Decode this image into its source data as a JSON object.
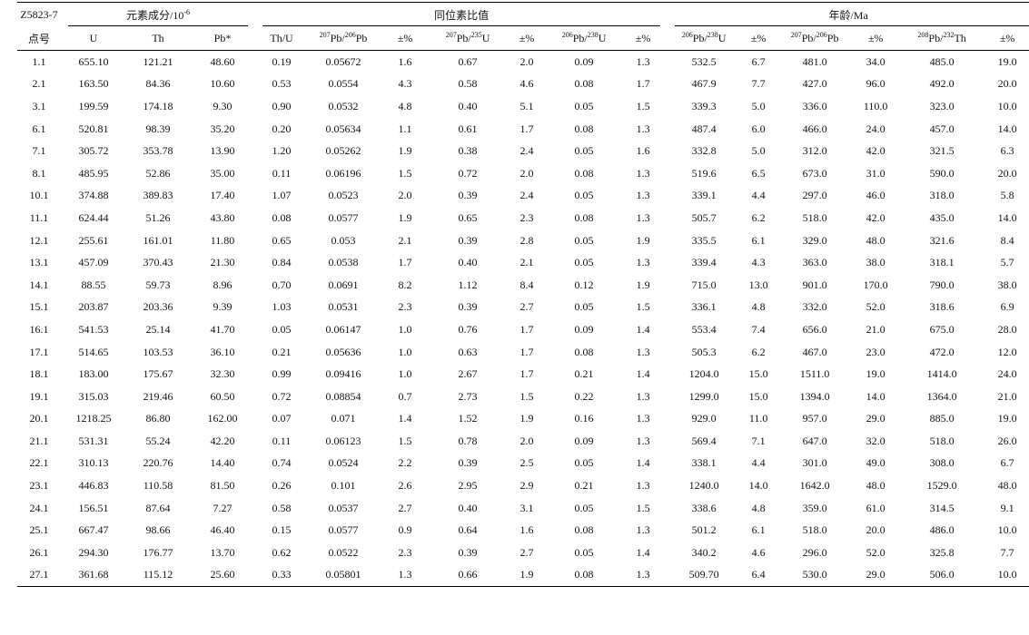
{
  "table": {
    "sample_label": "Z5823-7",
    "groups": {
      "element": "元素成分/10",
      "element_exp": "-6",
      "ratio": "同位素比值",
      "age": "年龄/Ma"
    },
    "columns": {
      "point": "点号",
      "u": "U",
      "th": "Th",
      "pb": "Pb*",
      "thu": "Th/U",
      "r1_sup_a": "207",
      "r1_mid": "Pb/",
      "r1_sup_b": "206",
      "r1_end": "Pb",
      "err1": "±%",
      "r2_sup_a": "207",
      "r2_mid": "Pb/",
      "r2_sup_b": "235",
      "r2_end": "U",
      "err2": "±%",
      "r3_sup_a": "206",
      "r3_mid": "Pb/",
      "r3_sup_b": "238",
      "r3_end": "U",
      "err3": "±%",
      "a1_sup_a": "206",
      "a1_mid": "Pb/",
      "a1_sup_b": "238",
      "a1_end": "U",
      "aerr1": "±%",
      "a2_sup_a": "207",
      "a2_mid": "Pb/",
      "a2_sup_b": "206",
      "a2_end": "Pb",
      "aerr2": "±%",
      "a3_sup_a": "208",
      "a3_mid": "Pb/",
      "a3_sup_b": "232",
      "a3_end": "Th",
      "aerr3": "±%"
    },
    "rows": [
      [
        "1.1",
        "655.10",
        "121.21",
        "48.60",
        "0.19",
        "0.05672",
        "1.6",
        "0.67",
        "2.0",
        "0.09",
        "1.3",
        "532.5",
        "6.7",
        "481.0",
        "34.0",
        "485.0",
        "19.0"
      ],
      [
        "2.1",
        "163.50",
        "84.36",
        "10.60",
        "0.53",
        "0.0554",
        "4.3",
        "0.58",
        "4.6",
        "0.08",
        "1.7",
        "467.9",
        "7.7",
        "427.0",
        "96.0",
        "492.0",
        "20.0"
      ],
      [
        "3.1",
        "199.59",
        "174.18",
        "9.30",
        "0.90",
        "0.0532",
        "4.8",
        "0.40",
        "5.1",
        "0.05",
        "1.5",
        "339.3",
        "5.0",
        "336.0",
        "110.0",
        "323.0",
        "10.0"
      ],
      [
        "6.1",
        "520.81",
        "98.39",
        "35.20",
        "0.20",
        "0.05634",
        "1.1",
        "0.61",
        "1.7",
        "0.08",
        "1.3",
        "487.4",
        "6.0",
        "466.0",
        "24.0",
        "457.0",
        "14.0"
      ],
      [
        "7.1",
        "305.72",
        "353.78",
        "13.90",
        "1.20",
        "0.05262",
        "1.9",
        "0.38",
        "2.4",
        "0.05",
        "1.6",
        "332.8",
        "5.0",
        "312.0",
        "42.0",
        "321.5",
        "6.3"
      ],
      [
        "8.1",
        "485.95",
        "52.86",
        "35.00",
        "0.11",
        "0.06196",
        "1.5",
        "0.72",
        "2.0",
        "0.08",
        "1.3",
        "519.6",
        "6.5",
        "673.0",
        "31.0",
        "590.0",
        "20.0"
      ],
      [
        "10.1",
        "374.88",
        "389.83",
        "17.40",
        "1.07",
        "0.0523",
        "2.0",
        "0.39",
        "2.4",
        "0.05",
        "1.3",
        "339.1",
        "4.4",
        "297.0",
        "46.0",
        "318.0",
        "5.8"
      ],
      [
        "11.1",
        "624.44",
        "51.26",
        "43.80",
        "0.08",
        "0.0577",
        "1.9",
        "0.65",
        "2.3",
        "0.08",
        "1.3",
        "505.7",
        "6.2",
        "518.0",
        "42.0",
        "435.0",
        "14.0"
      ],
      [
        "12.1",
        "255.61",
        "161.01",
        "11.80",
        "0.65",
        "0.053",
        "2.1",
        "0.39",
        "2.8",
        "0.05",
        "1.9",
        "335.5",
        "6.1",
        "329.0",
        "48.0",
        "321.6",
        "8.4"
      ],
      [
        "13.1",
        "457.09",
        "370.43",
        "21.30",
        "0.84",
        "0.0538",
        "1.7",
        "0.40",
        "2.1",
        "0.05",
        "1.3",
        "339.4",
        "4.3",
        "363.0",
        "38.0",
        "318.1",
        "5.7"
      ],
      [
        "14.1",
        "88.55",
        "59.73",
        "8.96",
        "0.70",
        "0.0691",
        "8.2",
        "1.12",
        "8.4",
        "0.12",
        "1.9",
        "715.0",
        "13.0",
        "901.0",
        "170.0",
        "790.0",
        "38.0"
      ],
      [
        "15.1",
        "203.87",
        "203.36",
        "9.39",
        "1.03",
        "0.0531",
        "2.3",
        "0.39",
        "2.7",
        "0.05",
        "1.5",
        "336.1",
        "4.8",
        "332.0",
        "52.0",
        "318.6",
        "6.9"
      ],
      [
        "16.1",
        "541.53",
        "25.14",
        "41.70",
        "0.05",
        "0.06147",
        "1.0",
        "0.76",
        "1.7",
        "0.09",
        "1.4",
        "553.4",
        "7.4",
        "656.0",
        "21.0",
        "675.0",
        "28.0"
      ],
      [
        "17.1",
        "514.65",
        "103.53",
        "36.10",
        "0.21",
        "0.05636",
        "1.0",
        "0.63",
        "1.7",
        "0.08",
        "1.3",
        "505.3",
        "6.2",
        "467.0",
        "23.0",
        "472.0",
        "12.0"
      ],
      [
        "18.1",
        "183.00",
        "175.67",
        "32.30",
        "0.99",
        "0.09416",
        "1.0",
        "2.67",
        "1.7",
        "0.21",
        "1.4",
        "1204.0",
        "15.0",
        "1511.0",
        "19.0",
        "1414.0",
        "24.0"
      ],
      [
        "19.1",
        "315.03",
        "219.46",
        "60.50",
        "0.72",
        "0.08854",
        "0.7",
        "2.73",
        "1.5",
        "0.22",
        "1.3",
        "1299.0",
        "15.0",
        "1394.0",
        "14.0",
        "1364.0",
        "21.0"
      ],
      [
        "20.1",
        "1218.25",
        "86.80",
        "162.00",
        "0.07",
        "0.071",
        "1.4",
        "1.52",
        "1.9",
        "0.16",
        "1.3",
        "929.0",
        "11.0",
        "957.0",
        "29.0",
        "885.0",
        "19.0"
      ],
      [
        "21.1",
        "531.31",
        "55.24",
        "42.20",
        "0.11",
        "0.06123",
        "1.5",
        "0.78",
        "2.0",
        "0.09",
        "1.3",
        "569.4",
        "7.1",
        "647.0",
        "32.0",
        "518.0",
        "26.0"
      ],
      [
        "22.1",
        "310.13",
        "220.76",
        "14.40",
        "0.74",
        "0.0524",
        "2.2",
        "0.39",
        "2.5",
        "0.05",
        "1.4",
        "338.1",
        "4.4",
        "301.0",
        "49.0",
        "308.0",
        "6.7"
      ],
      [
        "23.1",
        "446.83",
        "110.58",
        "81.50",
        "0.26",
        "0.101",
        "2.6",
        "2.95",
        "2.9",
        "0.21",
        "1.3",
        "1240.0",
        "14.0",
        "1642.0",
        "48.0",
        "1529.0",
        "48.0"
      ],
      [
        "24.1",
        "156.51",
        "87.64",
        "7.27",
        "0.58",
        "0.0537",
        "2.7",
        "0.40",
        "3.1",
        "0.05",
        "1.5",
        "338.6",
        "4.8",
        "359.0",
        "61.0",
        "314.5",
        "9.1"
      ],
      [
        "25.1",
        "667.47",
        "98.66",
        "46.40",
        "0.15",
        "0.0577",
        "0.9",
        "0.64",
        "1.6",
        "0.08",
        "1.3",
        "501.2",
        "6.1",
        "518.0",
        "20.0",
        "486.0",
        "10.0"
      ],
      [
        "26.1",
        "294.30",
        "176.77",
        "13.70",
        "0.62",
        "0.0522",
        "2.3",
        "0.39",
        "2.7",
        "0.05",
        "1.4",
        "340.2",
        "4.6",
        "296.0",
        "52.0",
        "325.8",
        "7.7"
      ],
      [
        "27.1",
        "361.68",
        "115.12",
        "25.60",
        "0.33",
        "0.05801",
        "1.3",
        "0.66",
        "1.9",
        "0.08",
        "1.3",
        "509.70",
        "6.4",
        "530.0",
        "29.0",
        "506.0",
        "10.0"
      ]
    ]
  }
}
